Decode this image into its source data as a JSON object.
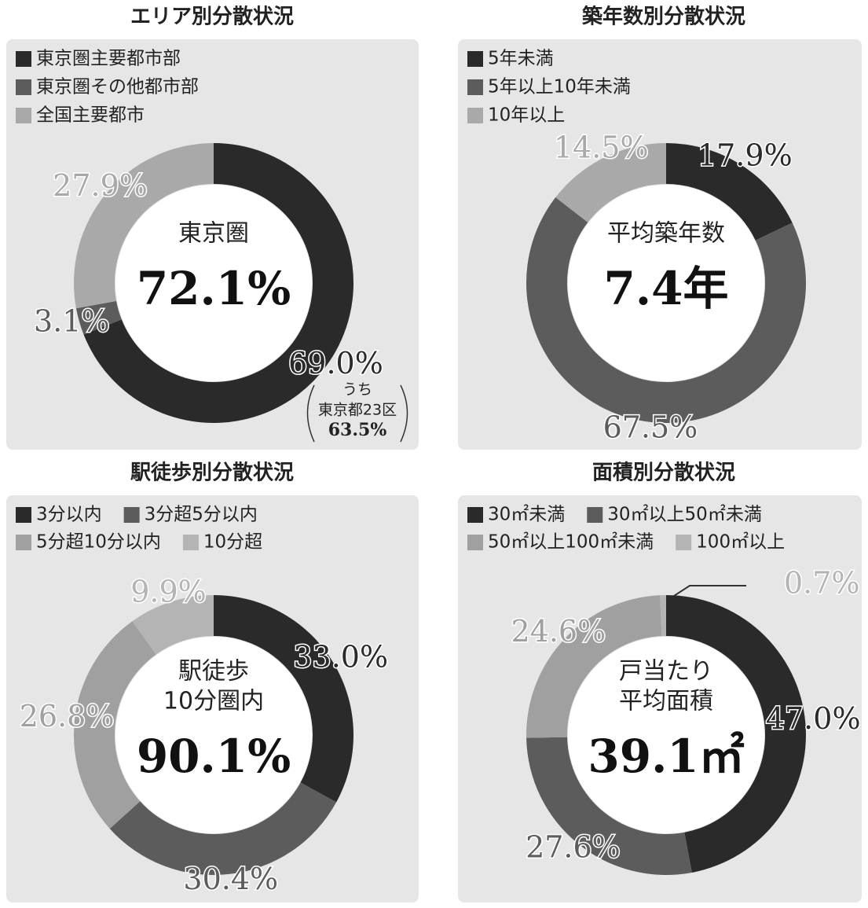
{
  "chart_data": [
    {
      "type": "donut",
      "title": "エリア別分散状況",
      "categories": [
        "東京圏主要都市部",
        "東京圏その他都市部",
        "全国主要都市"
      ],
      "values": [
        69.0,
        3.1,
        27.9
      ],
      "value_labels": [
        "69.0%",
        "3.1%",
        "27.9%"
      ],
      "colors": [
        "#2a2a2a",
        "#5c5c5c",
        "#a9a9a9"
      ],
      "center_lines": [
        "東京圏"
      ],
      "center_value": "72.1%",
      "note": [
        "うち",
        "東京都23区",
        "63.5%"
      ]
    },
    {
      "type": "donut",
      "title": "築年数別分散状況",
      "categories": [
        "5年未満",
        "5年以上10年未満",
        "10年以上"
      ],
      "values": [
        17.9,
        67.5,
        14.5
      ],
      "value_labels": [
        "17.9%",
        "67.5%",
        "14.5%"
      ],
      "colors": [
        "#2a2a2a",
        "#5c5c5c",
        "#a9a9a9"
      ],
      "center_lines": [
        "平均築年数"
      ],
      "center_value": "7.4年"
    },
    {
      "type": "donut",
      "title": "駅徒歩別分散状況",
      "categories": [
        "3分以内",
        "3分超5分以内",
        "5分超10分以内",
        "10分超"
      ],
      "values": [
        33.0,
        30.4,
        26.8,
        9.9
      ],
      "value_labels": [
        "33.0%",
        "30.4%",
        "26.8%",
        "9.9%"
      ],
      "colors": [
        "#2a2a2a",
        "#5c5c5c",
        "#a0a0a0",
        "#b4b4b4"
      ],
      "center_lines": [
        "駅徒歩",
        "10分圏内"
      ],
      "center_value": "90.1%"
    },
    {
      "type": "donut",
      "title": "面積別分散状況",
      "categories": [
        "30㎡未満",
        "30㎡以上50㎡未満",
        "50㎡以上100㎡未満",
        "100㎡以上"
      ],
      "values": [
        47.0,
        27.6,
        24.6,
        0.7
      ],
      "value_labels": [
        "47.0%",
        "27.6%",
        "24.6%",
        "0.7%"
      ],
      "colors": [
        "#2a2a2a",
        "#5c5c5c",
        "#a0a0a0",
        "#b4b4b4"
      ],
      "center_lines": [
        "戸当たり",
        "平均面積"
      ],
      "center_value": "39.1㎡"
    }
  ]
}
